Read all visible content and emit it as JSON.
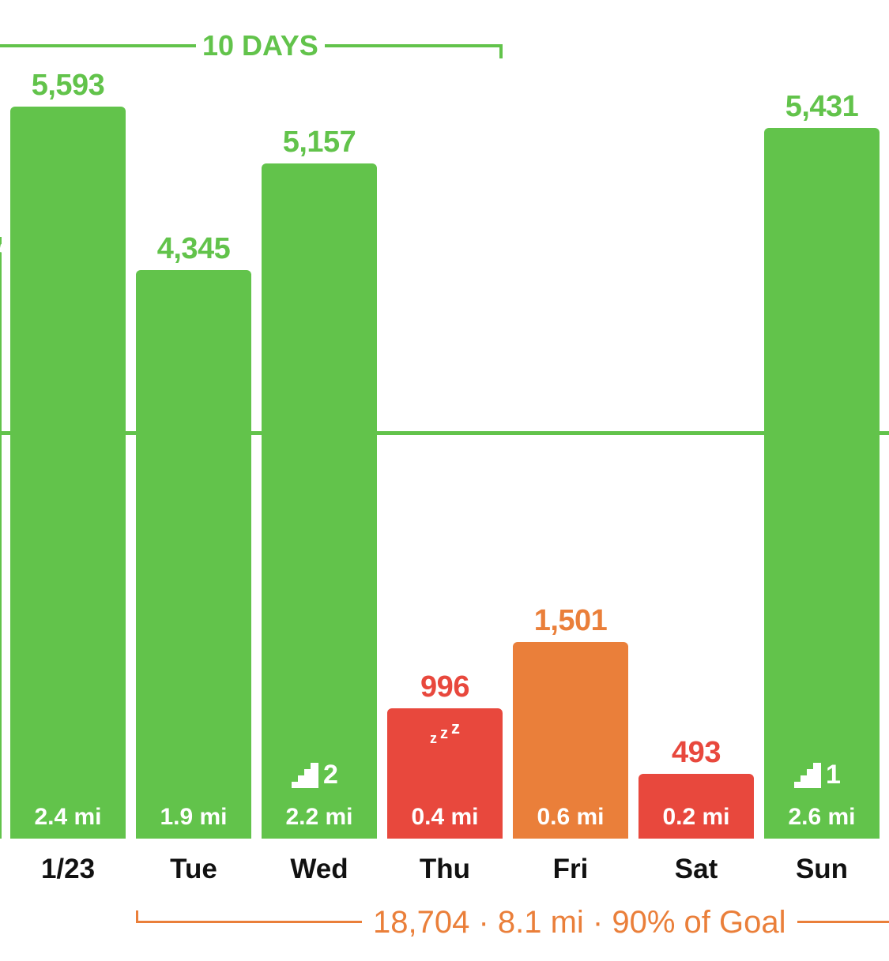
{
  "colors": {
    "green": "#62c34b",
    "red": "#e8483d",
    "orange": "#ea7f3a",
    "text": "#111111"
  },
  "top_bracket": {
    "label": "10 DAYS"
  },
  "bottom_bracket": {
    "label": "18,704 · 8.1 mi · 90% of Goal"
  },
  "days": [
    {
      "day": "1/23",
      "steps": 5593,
      "steps_label": "5,593",
      "distance": "2.4 mi",
      "status": "green"
    },
    {
      "day": "Tue",
      "steps": 4345,
      "steps_label": "4,345",
      "distance": "1.9 mi",
      "status": "green"
    },
    {
      "day": "Wed",
      "steps": 5157,
      "steps_label": "5,157",
      "distance": "2.2 mi",
      "status": "green",
      "floors": "2"
    },
    {
      "day": "Thu",
      "steps": 996,
      "steps_label": "996",
      "distance": "0.4 mi",
      "status": "red",
      "sleep_icon": "zzz-icon"
    },
    {
      "day": "Fri",
      "steps": 1501,
      "steps_label": "1,501",
      "distance": "0.6 mi",
      "status": "orange"
    },
    {
      "day": "Sat",
      "steps": 493,
      "steps_label": "493",
      "distance": "0.2 mi",
      "status": "red"
    },
    {
      "day": "Sun",
      "steps": 5431,
      "steps_label": "5,431",
      "distance": "2.6 mi",
      "status": "green",
      "floors": "1"
    }
  ]
}
